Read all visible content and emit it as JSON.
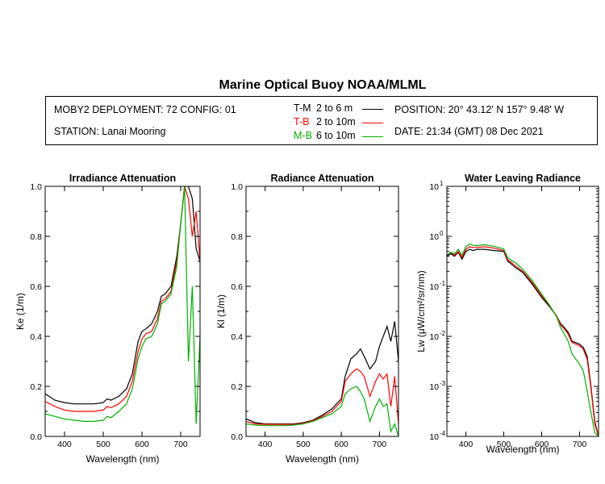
{
  "title": "Marine Optical Buoy NOAA/MLML",
  "info": {
    "deployment": "MOBY2 DEPLOYMENT: 72 CONFIG: 01",
    "station": "STATION: Lanai Mooring",
    "position": "POSITION: 20° 43.12' N   157° 9.48' W",
    "date": "DATE: 21:34 (GMT) 08 Dec 2021"
  },
  "legend": [
    {
      "code": "T-M",
      "range": "2 to 6  m",
      "color": "#000000"
    },
    {
      "code": "T-B",
      "range": "2 to 10m",
      "color": "#ff0000"
    },
    {
      "code": "M-B",
      "range": "6 to 10m",
      "color": "#00b000"
    }
  ],
  "chart_data": [
    {
      "type": "line",
      "title": "Irradiance Attenuation",
      "xlabel": "Wavelength (nm)",
      "ylabel": "Ke  (1/m)",
      "xlim": [
        350,
        750
      ],
      "ylim": [
        0,
        1.0
      ],
      "xticks": [
        400,
        500,
        600,
        700
      ],
      "yticks": [
        0.0,
        0.2,
        0.4,
        0.6,
        0.8,
        1.0
      ],
      "ytick_labels": [
        "0.0",
        "0.2",
        "0.4",
        "0.6",
        "0.8",
        "1.0"
      ],
      "x": [
        350,
        375,
        400,
        425,
        450,
        475,
        500,
        510,
        520,
        540,
        560,
        575,
        590,
        600,
        610,
        625,
        640,
        650,
        660,
        675,
        690,
        700,
        710,
        720,
        730,
        740,
        750
      ],
      "series": [
        {
          "name": "T-M",
          "color": "#000000",
          "values": [
            0.17,
            0.145,
            0.135,
            0.13,
            0.13,
            0.13,
            0.135,
            0.15,
            0.145,
            0.16,
            0.19,
            0.25,
            0.38,
            0.42,
            0.43,
            0.45,
            0.5,
            0.56,
            0.57,
            0.6,
            0.72,
            0.85,
            1.0,
            1.0,
            0.95,
            0.75,
            0.7
          ]
        },
        {
          "name": "T-B",
          "color": "#ff0000",
          "values": [
            0.14,
            0.12,
            0.105,
            0.1,
            0.1,
            0.1,
            0.105,
            0.12,
            0.115,
            0.13,
            0.16,
            0.22,
            0.34,
            0.39,
            0.41,
            0.42,
            0.47,
            0.54,
            0.55,
            0.58,
            0.7,
            0.85,
            1.0,
            0.95,
            0.8,
            0.9,
            0.7
          ]
        },
        {
          "name": "M-B",
          "color": "#00b000",
          "values": [
            0.09,
            0.08,
            0.07,
            0.065,
            0.06,
            0.06,
            0.065,
            0.08,
            0.075,
            0.1,
            0.13,
            0.19,
            0.31,
            0.36,
            0.39,
            0.4,
            0.45,
            0.53,
            0.54,
            0.57,
            0.68,
            0.85,
            1.0,
            0.3,
            0.6,
            0.05,
            0.4
          ]
        }
      ]
    },
    {
      "type": "line",
      "title": "Radiance Attenuation",
      "xlabel": "Wavelength (nm)",
      "ylabel": "Kl  (1/m)",
      "xlim": [
        350,
        750
      ],
      "ylim": [
        0,
        1.0
      ],
      "xticks": [
        400,
        500,
        600,
        700
      ],
      "yticks": [
        0.0,
        0.2,
        0.4,
        0.6,
        0.8,
        1.0
      ],
      "ytick_labels": [
        "0.0",
        "0.2",
        "0.4",
        "0.6",
        "0.8",
        "1.0"
      ],
      "x": [
        350,
        375,
        400,
        425,
        450,
        475,
        500,
        525,
        550,
        575,
        600,
        610,
        625,
        640,
        650,
        660,
        675,
        690,
        700,
        710,
        720,
        730,
        740,
        750
      ],
      "series": [
        {
          "name": "T-M",
          "color": "#000000",
          "values": [
            0.07,
            0.055,
            0.05,
            0.05,
            0.05,
            0.05,
            0.055,
            0.065,
            0.085,
            0.11,
            0.15,
            0.24,
            0.31,
            0.33,
            0.35,
            0.32,
            0.27,
            0.3,
            0.36,
            0.4,
            0.44,
            0.38,
            0.46,
            0.3
          ]
        },
        {
          "name": "T-B",
          "color": "#ff0000",
          "values": [
            0.06,
            0.05,
            0.048,
            0.048,
            0.048,
            0.048,
            0.053,
            0.063,
            0.08,
            0.1,
            0.14,
            0.22,
            0.25,
            0.27,
            0.26,
            0.24,
            0.16,
            0.22,
            0.25,
            0.23,
            0.25,
            0.12,
            0.24,
            0.05
          ]
        },
        {
          "name": "M-B",
          "color": "#00b000",
          "values": [
            0.05,
            0.045,
            0.043,
            0.043,
            0.043,
            0.045,
            0.05,
            0.06,
            0.075,
            0.09,
            0.12,
            0.17,
            0.19,
            0.2,
            0.18,
            0.15,
            0.06,
            0.12,
            0.15,
            0.12,
            0.13,
            0.02,
            0.05,
            0.0
          ]
        }
      ]
    },
    {
      "type": "line",
      "title": "Water Leaving Radiance",
      "xlabel": "Wavelength (nm)",
      "ylabel": "Lw  (μW/cm²/sr/nm)",
      "xscale": "linear",
      "yscale": "log",
      "xlim": [
        350,
        750
      ],
      "ylim": [
        0.0001,
        10
      ],
      "xticks": [
        400,
        500,
        600,
        700
      ],
      "yticks": [
        10,
        1,
        0.1,
        0.01,
        0.001,
        0.0001
      ],
      "ytick_labels": [
        "10",
        "10",
        "10",
        "10",
        "10",
        "10"
      ],
      "ytick_exponents": [
        "1",
        "0",
        "-1",
        "-2",
        "-3",
        "-4"
      ],
      "x": [
        350,
        360,
        370,
        380,
        390,
        400,
        410,
        420,
        430,
        450,
        475,
        500,
        510,
        520,
        530,
        550,
        575,
        600,
        620,
        640,
        650,
        660,
        670,
        675,
        680,
        690,
        700,
        710,
        720,
        730,
        740,
        750
      ],
      "series": [
        {
          "name": "T-M",
          "color": "#000000",
          "values": [
            0.4,
            0.45,
            0.4,
            0.48,
            0.35,
            0.5,
            0.55,
            0.52,
            0.55,
            0.55,
            0.52,
            0.5,
            0.32,
            0.28,
            0.24,
            0.19,
            0.11,
            0.06,
            0.04,
            0.025,
            0.018,
            0.015,
            0.012,
            0.01,
            0.008,
            0.0075,
            0.007,
            0.006,
            0.004,
            0.001,
            0.0002,
            0.0001
          ]
        },
        {
          "name": "T-B",
          "color": "#ff0000",
          "values": [
            0.42,
            0.48,
            0.42,
            0.5,
            0.38,
            0.55,
            0.62,
            0.6,
            0.6,
            0.62,
            0.58,
            0.52,
            0.34,
            0.3,
            0.26,
            0.2,
            0.12,
            0.065,
            0.042,
            0.025,
            0.017,
            0.014,
            0.011,
            0.009,
            0.0075,
            0.007,
            0.0065,
            0.0055,
            0.0035,
            0.0009,
            0.00018,
            0.0001
          ]
        },
        {
          "name": "M-B",
          "color": "#00b000",
          "values": [
            0.42,
            0.48,
            0.45,
            0.55,
            0.42,
            0.62,
            0.7,
            0.66,
            0.65,
            0.68,
            0.63,
            0.56,
            0.38,
            0.33,
            0.3,
            0.22,
            0.13,
            0.07,
            0.043,
            0.024,
            0.015,
            0.011,
            0.008,
            0.006,
            0.0045,
            0.0035,
            0.0028,
            0.002,
            0.0008,
            0.0003,
            0.00012,
            0.0001
          ]
        }
      ]
    }
  ]
}
